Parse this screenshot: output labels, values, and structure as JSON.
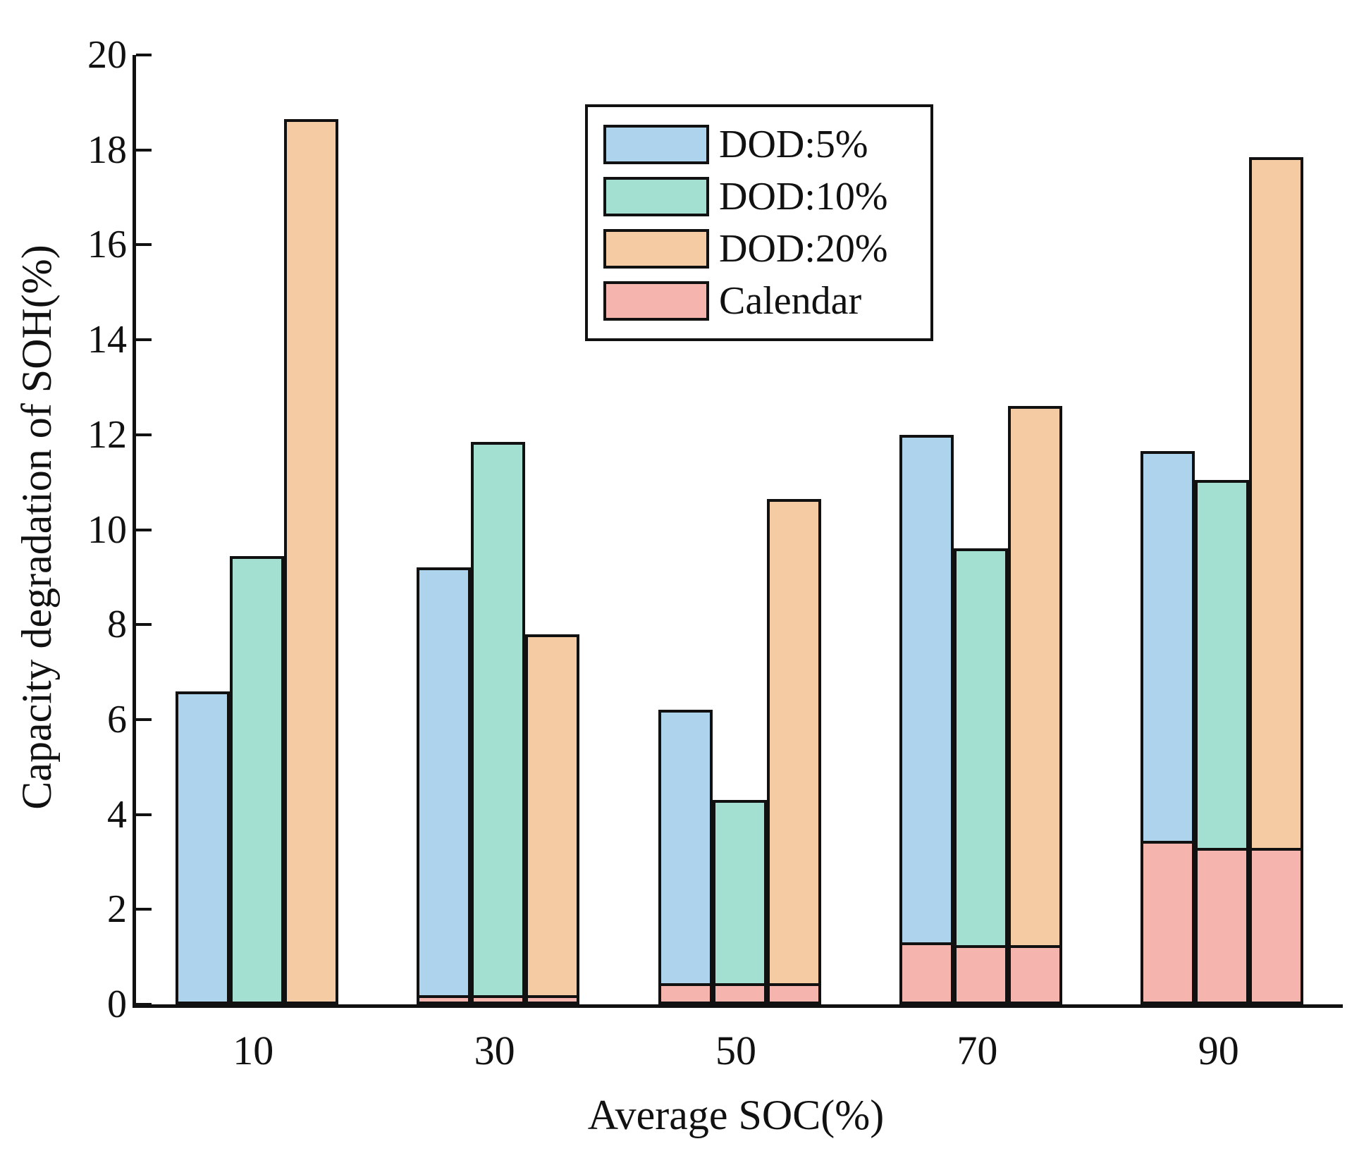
{
  "chart_data": {
    "type": "bar",
    "title": "",
    "xlabel": "Average SOC(%)",
    "ylabel": "Capacity degradation of SOH(%)",
    "categories": [
      "10",
      "30",
      "50",
      "70",
      "90"
    ],
    "ylim": [
      0,
      20
    ],
    "ytick_step": 2,
    "grid": false,
    "legend_position": "top-center",
    "bar_colors": {
      "dod5": "#aed3ec",
      "dod10": "#a3e0d1",
      "dod20": "#f5cba4",
      "calendar": "#f6b4af"
    },
    "series": [
      {
        "name": "DOD:5%",
        "color_key": "dod5",
        "values": [
          6.6,
          9.2,
          6.2,
          12.0,
          11.65
        ]
      },
      {
        "name": "DOD:10%",
        "color_key": "dod10",
        "values": [
          9.45,
          11.85,
          4.3,
          9.6,
          11.05
        ]
      },
      {
        "name": "DOD:20%",
        "color_key": "dod20",
        "values": [
          18.65,
          7.8,
          10.65,
          12.6,
          17.85
        ]
      }
    ],
    "calendar_overlay": {
      "name": "Calendar",
      "color_key": "calendar",
      "note": "calendar degradation drawn as bottom segment of each bar; one triplet per SOC group (order DOD:5%, DOD:10%, DOD:20%)",
      "values_per_group": [
        [
          0,
          0,
          0
        ],
        [
          0.2,
          0.2,
          0.2
        ],
        [
          0.45,
          0.45,
          0.45
        ],
        [
          1.3,
          1.25,
          1.25
        ],
        [
          3.45,
          3.3,
          3.3
        ]
      ]
    },
    "legend_items": [
      "DOD:5%",
      "DOD:10%",
      "DOD:20%",
      "Calendar"
    ]
  },
  "axis": {
    "x_label": "Average SOC(%)",
    "y_label": "Capacity degradation of SOH(%)",
    "y_ticks": [
      "0",
      "2",
      "4",
      "6",
      "8",
      "10",
      "12",
      "14",
      "16",
      "18",
      "20"
    ],
    "x_ticks": [
      "10",
      "30",
      "50",
      "70",
      "90"
    ]
  }
}
